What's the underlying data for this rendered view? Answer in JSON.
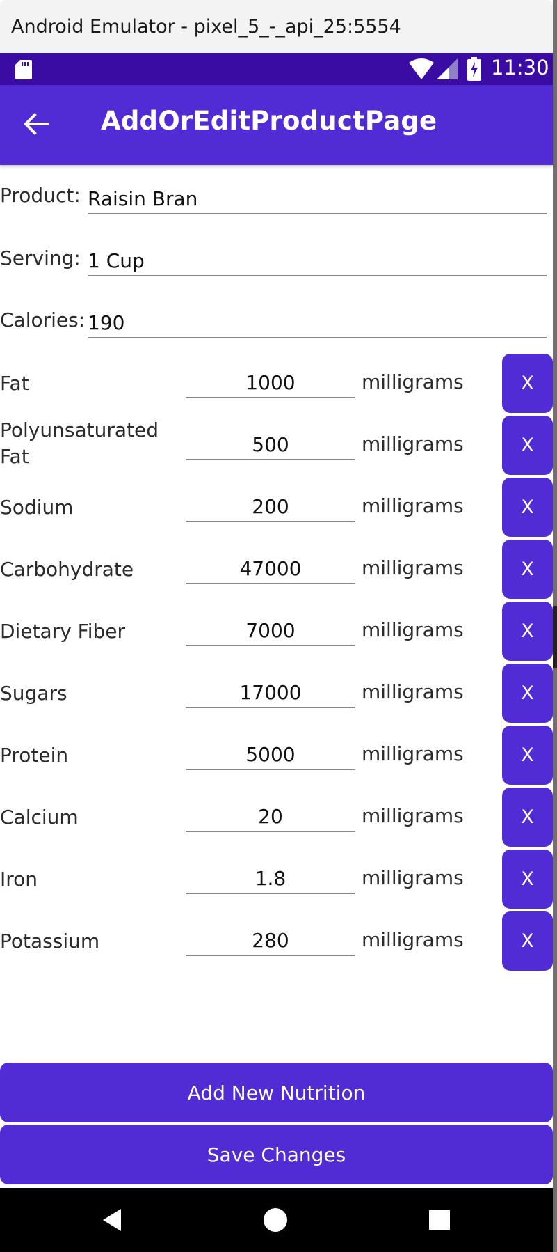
{
  "window": {
    "title": "Android Emulator - pixel_5_-_api_25:5554"
  },
  "status_bar": {
    "time": "11:30"
  },
  "app_bar": {
    "title": "AddOrEditProductPage"
  },
  "form": {
    "product": {
      "label": "Product:",
      "value": "Raisin Bran"
    },
    "serving": {
      "label": "Serving:",
      "value": "1 Cup"
    },
    "calories": {
      "label": "Calories:",
      "value": "190"
    }
  },
  "nutrition": [
    {
      "name": "Fat",
      "value": "1000",
      "unit": "milligrams",
      "remove": "X"
    },
    {
      "name": "Polyunsaturated Fat",
      "value": "500",
      "unit": "milligrams",
      "remove": "X"
    },
    {
      "name": "Sodium",
      "value": "200",
      "unit": "milligrams",
      "remove": "X"
    },
    {
      "name": "Carbohydrate",
      "value": "47000",
      "unit": "milligrams",
      "remove": "X"
    },
    {
      "name": "Dietary Fiber",
      "value": "7000",
      "unit": "milligrams",
      "remove": "X"
    },
    {
      "name": "Sugars",
      "value": "17000",
      "unit": "milligrams",
      "remove": "X"
    },
    {
      "name": "Protein",
      "value": "5000",
      "unit": "milligrams",
      "remove": "X"
    },
    {
      "name": "Calcium",
      "value": "20",
      "unit": "milligrams",
      "remove": "X"
    },
    {
      "name": "Iron",
      "value": "1.8",
      "unit": "milligrams",
      "remove": "X"
    },
    {
      "name": "Potassium",
      "value": "280",
      "unit": "milligrams",
      "remove": "X"
    }
  ],
  "actions": {
    "add_new_nutrition": "Add New Nutrition",
    "save_changes": "Save Changes"
  },
  "colors": {
    "primary": "#512bd4",
    "status_bar": "#3a0ca3"
  }
}
